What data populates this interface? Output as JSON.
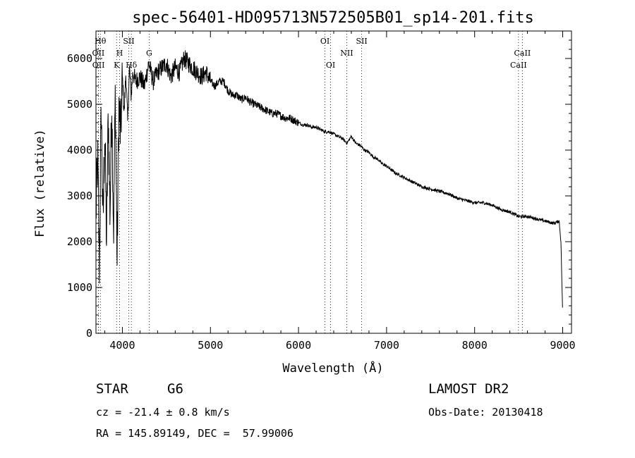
{
  "chart_data": {
    "type": "line",
    "title": "spec-56401-HD095713N572505B01_sp14-201.fits",
    "xlabel": "Wavelength (Å)",
    "ylabel": "Flux (relative)",
    "xlim": [
      3700,
      9100
    ],
    "ylim": [
      0,
      6600
    ],
    "xticks": [
      "4000",
      "5000",
      "6000",
      "7000",
      "8000",
      "9000"
    ],
    "yticks": [
      "0",
      "1000",
      "2000",
      "3000",
      "4000",
      "5000",
      "6000"
    ],
    "grid": false,
    "series": [
      {
        "x": [
          3700,
          3720,
          3740,
          3760,
          3780,
          3800,
          3820,
          3840,
          3860,
          3880,
          3900,
          3920,
          3940,
          3960,
          3980,
          4000,
          4020,
          4040,
          4060,
          4080,
          4100,
          4120,
          4150,
          4200,
          4250,
          4300,
          4350,
          4400,
          4450,
          4500,
          4550,
          4600,
          4650,
          4700,
          4750,
          4800,
          4850,
          4900,
          4950,
          5000,
          5050,
          5100,
          5150,
          5200,
          5250,
          5300,
          5350,
          5400,
          5450,
          5500,
          5550,
          5600,
          5650,
          5700,
          5750,
          5800,
          5850,
          5900,
          5950,
          6000,
          6050,
          6100,
          6150,
          6200,
          6250,
          6300,
          6350,
          6400,
          6450,
          6500,
          6550,
          6600,
          6650,
          6700,
          6750,
          6800,
          6850,
          6900,
          6950,
          7000,
          7100,
          7200,
          7300,
          7400,
          7500,
          7600,
          7700,
          7800,
          7900,
          8000,
          8100,
          8200,
          8300,
          8400,
          8500,
          8600,
          8700,
          8800,
          8900,
          8960,
          8980,
          9000
        ],
        "y": [
          2600,
          3800,
          1400,
          5000,
          2300,
          4500,
          2000,
          4800,
          2600,
          5100,
          2200,
          5300,
          1500,
          5000,
          4300,
          5600,
          4800,
          5700,
          4600,
          5800,
          5200,
          5700,
          5500,
          5600,
          5400,
          5900,
          5500,
          5700,
          5800,
          5900,
          5600,
          5800,
          5700,
          6000,
          5900,
          5800,
          5700,
          5600,
          5700,
          5500,
          5400,
          5500,
          5500,
          5300,
          5200,
          5200,
          5100,
          5150,
          5050,
          5000,
          4950,
          4900,
          4850,
          4800,
          4800,
          4750,
          4700,
          4700,
          4650,
          4600,
          4550,
          4550,
          4500,
          4500,
          4450,
          4400,
          4400,
          4350,
          4300,
          4250,
          4150,
          4300,
          4150,
          4100,
          4000,
          3950,
          3850,
          3800,
          3700,
          3650,
          3500,
          3400,
          3300,
          3200,
          3150,
          3100,
          3050,
          2950,
          2900,
          2850,
          2850,
          2800,
          2700,
          2650,
          2550,
          2550,
          2500,
          2450,
          2400,
          2450,
          2000,
          400
        ]
      }
    ],
    "lines": [
      {
        "label": "Hθ",
        "x": 3750,
        "row": 0
      },
      {
        "label": "OII",
        "x": 3727,
        "row": 1
      },
      {
        "label": "OII",
        "x": 3729,
        "row": 2
      },
      {
        "label": "H",
        "x": 3969,
        "row": 1
      },
      {
        "label": "K",
        "x": 3934,
        "row": 2
      },
      {
        "label": "SII",
        "x": 4072,
        "row": 0
      },
      {
        "label": "Hδ",
        "x": 4102,
        "row": 2
      },
      {
        "label": "G",
        "x": 4304,
        "row": 1
      },
      {
        "label": "OI",
        "x": 6300,
        "row": 0
      },
      {
        "label": "OI",
        "x": 6364,
        "row": 2
      },
      {
        "label": "NII",
        "x": 6548,
        "row": 1
      },
      {
        "label": "SII",
        "x": 6717,
        "row": 0
      },
      {
        "label": "CaII",
        "x": 8542,
        "row": 1
      },
      {
        "label": "CaII",
        "x": 8498,
        "row": 2
      }
    ]
  },
  "info": {
    "object": "STAR",
    "subclass": "G6",
    "survey": "LAMOST DR2",
    "cz": "cz = -21.4 ± 0.8 km/s",
    "obsdate": "Obs-Date: 20130418",
    "coords": "RA = 145.89149, DEC =  57.99006"
  }
}
